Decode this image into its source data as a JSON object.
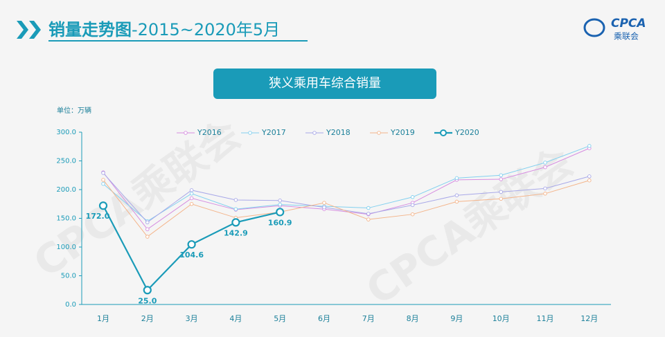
{
  "header": {
    "title_main": "销量走势图",
    "title_sub": "-2015~2020年5月",
    "logo": "CPCA",
    "logo_sub": "乘联会"
  },
  "chart_data": {
    "type": "line",
    "title": "狭义乘用车综合销量",
    "unit": "单位：万辆",
    "watermark": "CPCA乘联会",
    "categories": [
      "1月",
      "2月",
      "3月",
      "4月",
      "5月",
      "6月",
      "7月",
      "8月",
      "9月",
      "10月",
      "11月",
      "12月"
    ],
    "ylim": [
      0,
      300
    ],
    "yticks": [
      {
        "value": 0,
        "label": "0.0"
      },
      {
        "value": 50,
        "label": "50.0"
      },
      {
        "value": 100,
        "label": "100.0"
      },
      {
        "value": 150,
        "label": "150.0"
      },
      {
        "value": 200,
        "label": "200.0"
      },
      {
        "value": 250,
        "label": "250.0"
      },
      {
        "value": 300,
        "label": "300.0"
      }
    ],
    "series": [
      {
        "name": "Y2016",
        "color": "#d68de0",
        "values": [
          230,
          131,
          185,
          165,
          172,
          166,
          157,
          177,
          217,
          218,
          239,
          272
        ]
      },
      {
        "name": "Y2017",
        "color": "#82d0ef",
        "values": [
          210,
          145,
          193,
          166,
          174,
          171,
          168,
          187,
          220,
          225,
          247,
          276
        ]
      },
      {
        "name": "Y2018",
        "color": "#a8a8e8",
        "values": [
          229,
          143,
          199,
          182,
          181,
          169,
          158,
          173,
          190,
          196,
          202,
          223
        ]
      },
      {
        "name": "Y2019",
        "color": "#f4b48a",
        "values": [
          217,
          118,
          175,
          151,
          161,
          177,
          148,
          157,
          179,
          184,
          193,
          216
        ]
      },
      {
        "name": "Y2020",
        "color": "#1a9bb8",
        "values": [
          172.0,
          25.0,
          104.6,
          142.9,
          160.9,
          null,
          null,
          null,
          null,
          null,
          null,
          null
        ],
        "value_labels": [
          "172.0",
          "25.0",
          "104.6",
          "142.9",
          "160.9",
          null,
          null,
          null,
          null,
          null,
          null,
          null
        ]
      }
    ]
  }
}
